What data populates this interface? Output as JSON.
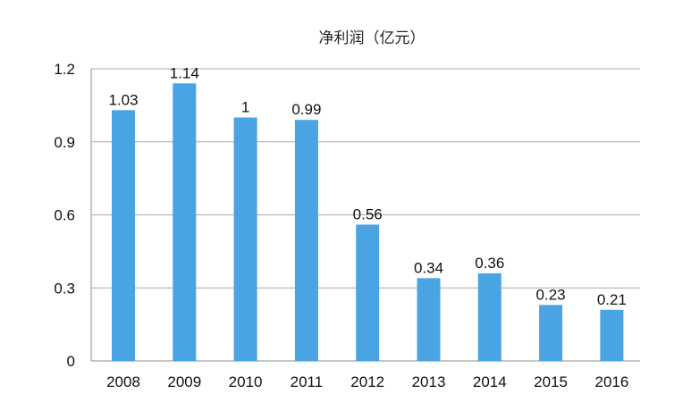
{
  "chart_data": {
    "type": "bar",
    "title": "净利润（亿元）",
    "xlabel": "",
    "ylabel": "",
    "categories": [
      "2008",
      "2009",
      "2010",
      "2011",
      "2012",
      "2013",
      "2014",
      "2015",
      "2016"
    ],
    "values": [
      1.03,
      1.14,
      1,
      0.99,
      0.56,
      0.34,
      0.36,
      0.23,
      0.21
    ],
    "value_labels": [
      "1.03",
      "1.14",
      "1",
      "0.99",
      "0.56",
      "0.34",
      "0.36",
      "0.23",
      "0.21"
    ],
    "ylim": [
      0,
      1.2
    ],
    "yticks": [
      0,
      0.3,
      0.6,
      0.9,
      1.2
    ],
    "ytick_labels": [
      "0",
      "0.3",
      "0.6",
      "0.9",
      "1.2"
    ],
    "grid": true,
    "legend": "none",
    "bar_color": "#4aa3e3"
  }
}
